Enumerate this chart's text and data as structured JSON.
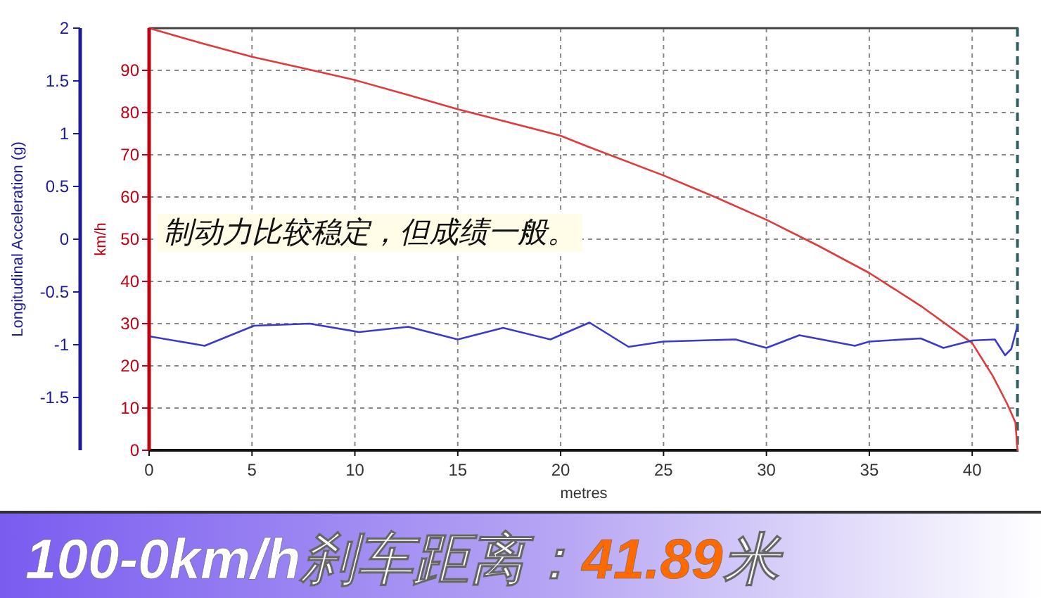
{
  "chart_data": {
    "type": "line",
    "title": "100-0km/h刹车距离：41.89米",
    "xlabel": "metres",
    "ylabel": "km/h",
    "y2label": "Longitudinal Acceleration (g)",
    "annotations": [
      "制动力比较稳定，但成绩一般。"
    ],
    "x": [
      0,
      2.5,
      5,
      7.5,
      10,
      12.5,
      15,
      20,
      21.4,
      25,
      27.5,
      30,
      32.5,
      35,
      37.5,
      40,
      41,
      41.7,
      42.1,
      42.2
    ],
    "series": [
      {
        "name": null,
        "color": "#e03a3a",
        "values": [
          100,
          96.5,
          93.2,
          90.5,
          87.7,
          84.3,
          80.8,
          74.5,
          71.8,
          65.1,
          60.0,
          54.6,
          48.5,
          42.0,
          34.2,
          25.4,
          17.6,
          11.0,
          6.6,
          0
        ]
      },
      {
        "name": null,
        "color": "#3a3acc",
        "axis": "y2",
        "x": [
          0,
          2.7,
          5.1,
          7.8,
          10.2,
          12.6,
          15.0,
          17.2,
          19.5,
          21.4,
          23.3,
          25.0,
          28.5,
          30.0,
          31.6,
          34.3,
          35.0,
          37.5,
          38.6,
          40.0,
          41.1,
          41.6,
          41.9,
          42.2
        ],
        "values": [
          -0.92,
          -1.01,
          -0.82,
          -0.8,
          -0.88,
          -0.83,
          -0.95,
          -0.84,
          -0.95,
          -0.79,
          -1.02,
          -0.97,
          -0.95,
          -1.03,
          -0.91,
          -1.01,
          -0.97,
          -0.94,
          -1.03,
          -0.96,
          -0.95,
          -1.1,
          -1.04,
          -0.82
        ]
      }
    ],
    "xlim": [
      0,
      42.25
    ],
    "xticks": [
      0,
      5,
      10,
      15,
      20,
      25,
      30,
      35,
      40
    ],
    "ylim": [
      0,
      100
    ],
    "yticks": [
      0,
      10,
      20,
      30,
      40,
      50,
      60,
      70,
      80,
      90
    ],
    "y2lim": [
      -2,
      2
    ],
    "y2ticks": [
      -1.5,
      -1,
      -0.5,
      0,
      0.5,
      1,
      1.5,
      2
    ],
    "ref_lines": [
      {
        "axis": "x",
        "value": 42.2,
        "label": null,
        "color": "#2f5f5f",
        "line_style": "dashed"
      }
    ],
    "grid": true,
    "marker": "none",
    "line_style": "solid"
  }
}
